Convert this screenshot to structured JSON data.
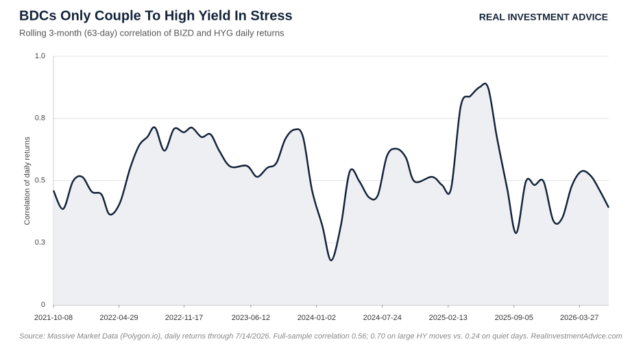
{
  "chart_data": {
    "type": "line",
    "title": "BDCs Only Couple To High Yield In Stress",
    "subtitle": "Rolling 3-month (63-day) correlation of BIZD and HYG daily returns",
    "brand": "REAL INVESTMENT ADVICE",
    "ylabel": "Correlation of daily returns",
    "source": "Source: Massive Market Data (Polygon.io), daily returns through 7/14/2026. Full-sample correlation 0.56; 0.70 on large HY moves vs. 0.24 on quiet days. RealInvestmentAdvice.com",
    "x": [
      "2021-10-08",
      "2021-11-07",
      "2021-12-07",
      "2022-01-05",
      "2022-02-04",
      "2022-03-06",
      "2022-03-31",
      "2022-05-02",
      "2022-06-03",
      "2022-07-01",
      "2022-07-26",
      "2022-08-19",
      "2022-09-17",
      "2022-10-17",
      "2022-11-16",
      "2022-12-11",
      "2023-01-10",
      "2023-02-07",
      "2023-03-06",
      "2023-04-10",
      "2023-05-31",
      "2023-07-01",
      "2023-08-02",
      "2023-08-30",
      "2023-09-27",
      "2023-10-26",
      "2023-11-21",
      "2023-12-19",
      "2024-01-20",
      "2024-02-16",
      "2024-03-17",
      "2024-04-14",
      "2024-05-14",
      "2024-06-12",
      "2024-07-10",
      "2024-08-07",
      "2024-09-05",
      "2024-10-05",
      "2024-11-01",
      "2024-12-25",
      "2025-01-25",
      "2025-02-22",
      "2025-03-24",
      "2025-04-23",
      "2025-05-22",
      "2025-06-17",
      "2025-07-14",
      "2025-08-15",
      "2025-09-12",
      "2025-10-12",
      "2025-11-08",
      "2025-12-06",
      "2026-01-05",
      "2026-02-02",
      "2026-03-03",
      "2026-04-02",
      "2026-05-02",
      "2026-05-29",
      "2026-06-26"
    ],
    "series": [
      {
        "name": "Correlation",
        "color": "#14233a",
        "fill": "#eeeff3",
        "values": [
          0.46,
          0.386,
          0.496,
          0.515,
          0.455,
          0.444,
          0.364,
          0.41,
          0.551,
          0.642,
          0.675,
          0.713,
          0.62,
          0.708,
          0.694,
          0.713,
          0.675,
          0.686,
          0.62,
          0.556,
          0.559,
          0.515,
          0.551,
          0.57,
          0.667,
          0.705,
          0.675,
          0.46,
          0.317,
          0.179,
          0.317,
          0.537,
          0.496,
          0.433,
          0.441,
          0.598,
          0.628,
          0.592,
          0.496,
          0.515,
          0.482,
          0.468,
          0.799,
          0.84,
          0.876,
          0.873,
          0.675,
          0.468,
          0.289,
          0.496,
          0.482,
          0.496,
          0.339,
          0.35,
          0.477,
          0.537,
          0.518,
          0.46,
          0.391
        ]
      }
    ],
    "xlim": [
      "2021-10-08",
      "2026-06-26"
    ],
    "xticks": [
      "2021-10-08",
      "2022-04-29",
      "2022-11-17",
      "2023-06-12",
      "2024-01-02",
      "2024-07-24",
      "2025-02-13",
      "2025-09-05",
      "2026-03-27"
    ],
    "ylim": [
      0,
      1
    ],
    "yticks": [
      0,
      {
        "value": 0.25,
        "label": "0.3"
      },
      0.5,
      {
        "value": 0.75,
        "label": "0.8"
      },
      {
        "value": 1,
        "label": "1.0"
      }
    ],
    "grid": true
  }
}
